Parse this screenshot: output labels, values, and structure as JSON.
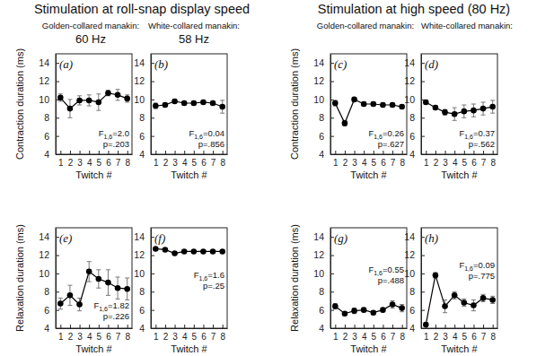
{
  "headers": [
    "Stimulation at roll-snap display speed",
    "Stimulation at high speed (80 Hz)"
  ],
  "chart_data": [
    {
      "type": "line",
      "title": "(a)",
      "subtitle": [
        "Golden-collared manakin:",
        "60 Hz"
      ],
      "x_label": "Twitch #",
      "y_label": "Contraction duration (ms)",
      "x": [
        1,
        2,
        3,
        4,
        5,
        6,
        7,
        8
      ],
      "xlim": [
        0.5,
        8.5
      ],
      "xticks": [
        1,
        2,
        3,
        4,
        5,
        6,
        7,
        8
      ],
      "ylim": [
        4,
        15
      ],
      "yticks": [
        4,
        6,
        8,
        10,
        12,
        14
      ],
      "grid": false,
      "series": [
        {
          "color": "#000000",
          "marker": "circle",
          "line_style": "solid",
          "values": [
            10.2,
            9.0,
            9.9,
            9.9,
            9.7,
            10.7,
            10.5,
            10.1
          ],
          "errors": [
            0.4,
            1.0,
            0.5,
            0.6,
            0.9,
            0.3,
            0.6,
            0.4
          ]
        }
      ],
      "stat_f": "F",
      "stat_df": "1,6",
      "stat_f_value": "=2.0",
      "stat_p": "p=.203"
    },
    {
      "type": "line",
      "title": "(b)",
      "subtitle": [
        "White-collared manakin:",
        "58 Hz"
      ],
      "x_label": "Twitch #",
      "x": [
        1,
        2,
        3,
        4,
        5,
        6,
        7,
        8
      ],
      "xlim": [
        0.5,
        8.5
      ],
      "xticks": [
        1,
        2,
        3,
        4,
        5,
        6,
        7,
        8
      ],
      "ylim": [
        4,
        15
      ],
      "yticks": [
        4,
        6,
        8,
        10,
        12,
        14
      ],
      "grid": false,
      "series": [
        {
          "color": "#000000",
          "marker": "circle",
          "line_style": "solid",
          "values": [
            9.3,
            9.4,
            9.8,
            9.6,
            9.6,
            9.7,
            9.6,
            9.2
          ],
          "errors": [
            0.3,
            0.2,
            0.2,
            0.2,
            0.2,
            0.2,
            0.2,
            0.7
          ]
        }
      ],
      "stat_f": "F",
      "stat_df": "1,6",
      "stat_f_value": "=0.04",
      "stat_p": "p=.856"
    },
    {
      "type": "line",
      "title": "(c)",
      "subtitle": [
        "Golden-collared manakin:"
      ],
      "x_label": "Twitch #",
      "y_label": "Contraction duration (ms)",
      "x": [
        1,
        2,
        3,
        4,
        5,
        6,
        7,
        8
      ],
      "xlim": [
        0.5,
        8.5
      ],
      "xticks": [
        1,
        2,
        3,
        4,
        5,
        6,
        7,
        8
      ],
      "ylim": [
        4,
        15
      ],
      "yticks": [
        4,
        6,
        8,
        10,
        12,
        14
      ],
      "grid": false,
      "series": [
        {
          "color": "#000000",
          "marker": "circle",
          "line_style": "solid",
          "values": [
            9.6,
            7.4,
            10.0,
            9.5,
            9.5,
            9.4,
            9.4,
            9.2
          ],
          "errors": [
            0.3,
            0.3,
            0.2,
            0.2,
            0.2,
            0.2,
            0.2,
            0.2
          ]
        }
      ],
      "stat_f": "F",
      "stat_df": "1,6",
      "stat_f_value": "=0.26",
      "stat_p": "p=.627"
    },
    {
      "type": "line",
      "title": "(d)",
      "subtitle": [
        "White-collared manakin:"
      ],
      "x_label": "Twitch #",
      "x": [
        1,
        2,
        3,
        4,
        5,
        6,
        7,
        8
      ],
      "xlim": [
        0.5,
        8.5
      ],
      "xticks": [
        1,
        2,
        3,
        4,
        5,
        6,
        7,
        8
      ],
      "ylim": [
        4,
        15
      ],
      "yticks": [
        4,
        6,
        8,
        10,
        12,
        14
      ],
      "grid": false,
      "series": [
        {
          "color": "#000000",
          "marker": "circle",
          "line_style": "solid",
          "values": [
            9.7,
            9.1,
            8.6,
            8.4,
            8.7,
            8.8,
            9.0,
            9.2
          ],
          "errors": [
            0.2,
            0.2,
            0.3,
            0.7,
            0.7,
            0.7,
            0.7,
            0.7
          ]
        }
      ],
      "stat_f": "F",
      "stat_df": "1,6",
      "stat_f_value": "=0.37",
      "stat_p": "p=.562"
    },
    {
      "type": "line",
      "title": "(e)",
      "x_label": "Twitch #",
      "y_label": "Relaxation duration (ms)",
      "x": [
        1,
        2,
        3,
        4,
        5,
        6,
        7,
        8
      ],
      "xlim": [
        0.5,
        8.5
      ],
      "xticks": [
        1,
        2,
        3,
        4,
        5,
        6,
        7,
        8
      ],
      "ylim": [
        4,
        15
      ],
      "yticks": [
        4,
        6,
        8,
        10,
        12,
        14
      ],
      "grid": false,
      "series": [
        {
          "color": "#000000",
          "marker": "circle",
          "line_style": "solid",
          "values": [
            6.7,
            7.6,
            6.6,
            10.2,
            9.4,
            9.0,
            8.4,
            8.3
          ],
          "errors": [
            0.6,
            1.1,
            0.7,
            1.1,
            1.0,
            1.4,
            1.2,
            1.2
          ]
        }
      ],
      "stat_f": "F",
      "stat_df": "1,6",
      "stat_f_value": "=1.82",
      "stat_p": "p=.226"
    },
    {
      "type": "line",
      "title": "(f)",
      "x_label": "Twitch #",
      "x": [
        1,
        2,
        3,
        4,
        5,
        6,
        7,
        8
      ],
      "xlim": [
        0.5,
        8.5
      ],
      "xticks": [
        1,
        2,
        3,
        4,
        5,
        6,
        7,
        8
      ],
      "ylim": [
        4,
        15
      ],
      "yticks": [
        4,
        6,
        8,
        10,
        12,
        14
      ],
      "grid": false,
      "series": [
        {
          "color": "#000000",
          "marker": "circle",
          "line_style": "solid",
          "values": [
            12.7,
            12.6,
            12.2,
            12.4,
            12.4,
            12.4,
            12.4,
            12.4
          ],
          "errors": [
            0.1,
            0.1,
            0.1,
            0.1,
            0.1,
            0.1,
            0.1,
            0.1
          ]
        }
      ],
      "stat_f": "F",
      "stat_df": "1,6",
      "stat_f_value": "=1.6",
      "stat_p": "p=.25"
    },
    {
      "type": "line",
      "title": "(g)",
      "x_label": "Twitch #",
      "y_label": "Relaxation duration (ms)",
      "x": [
        1,
        2,
        3,
        4,
        5,
        6,
        7,
        8
      ],
      "xlim": [
        0.5,
        8.5
      ],
      "xticks": [
        1,
        2,
        3,
        4,
        5,
        6,
        7,
        8
      ],
      "ylim": [
        4,
        15
      ],
      "yticks": [
        4,
        6,
        8,
        10,
        12,
        14
      ],
      "grid": false,
      "series": [
        {
          "color": "#000000",
          "marker": "circle",
          "line_style": "solid",
          "values": [
            6.4,
            5.6,
            5.9,
            6.0,
            5.7,
            6.0,
            6.6,
            6.2
          ],
          "errors": [
            0.3,
            0.2,
            0.3,
            0.2,
            0.2,
            0.2,
            0.4,
            0.4
          ]
        }
      ],
      "stat_f": "F",
      "stat_df": "1,6",
      "stat_f_value": "=0.55",
      "stat_p": "p=.488"
    },
    {
      "type": "line",
      "title": "(h)",
      "x_label": "Twitch #",
      "x": [
        1,
        2,
        3,
        4,
        5,
        6,
        7,
        8
      ],
      "xlim": [
        0.5,
        8.5
      ],
      "xticks": [
        1,
        2,
        3,
        4,
        5,
        6,
        7,
        8
      ],
      "ylim": [
        4,
        15
      ],
      "yticks": [
        4,
        6,
        8,
        10,
        12,
        14
      ],
      "grid": false,
      "series": [
        {
          "color": "#000000",
          "marker": "circle",
          "line_style": "solid",
          "values": [
            4.4,
            9.8,
            6.4,
            7.6,
            6.8,
            6.5,
            7.3,
            7.1
          ],
          "errors": [
            0.2,
            0.3,
            0.7,
            0.4,
            0.4,
            0.6,
            0.4,
            0.4
          ]
        }
      ],
      "stat_f": "F",
      "stat_df": "1,6",
      "stat_f_value": "=0.09",
      "stat_p": "p=.775"
    }
  ]
}
